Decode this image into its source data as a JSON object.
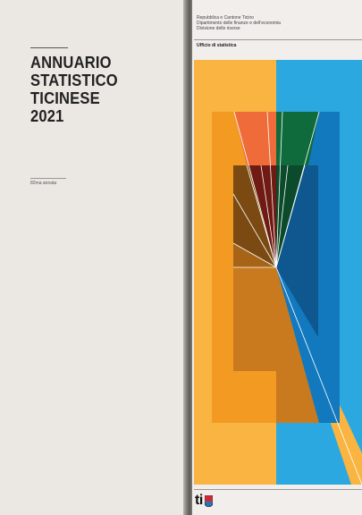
{
  "cover": {
    "title_lines": [
      "ANNUARIO",
      "STATISTICO",
      "TICINESE",
      "2021"
    ],
    "edition": "82ma annata"
  },
  "publisher": {
    "lines": [
      "Repubblica e Cantone Ticino",
      "Dipartimento delle finanze e dell’economia",
      "Divisione delle risorse"
    ],
    "office": "Ufficio di statistica"
  },
  "logo": {
    "text": "ti",
    "name": "ti-logo"
  },
  "colors": {
    "background": "#ebe7e3",
    "light_orange": "#f9b441",
    "sky_blue": "#2ba8df",
    "orange": "#f39a23",
    "blue": "#1279bf",
    "red_orange": "#ef6c3a",
    "green": "#0f6b3b",
    "dark_brown": "#7a4a12",
    "dark_red": "#6f1a12",
    "dark_green": "#0b4a2a",
    "navy": "#0e588f",
    "ochre": "#c97a1f"
  }
}
